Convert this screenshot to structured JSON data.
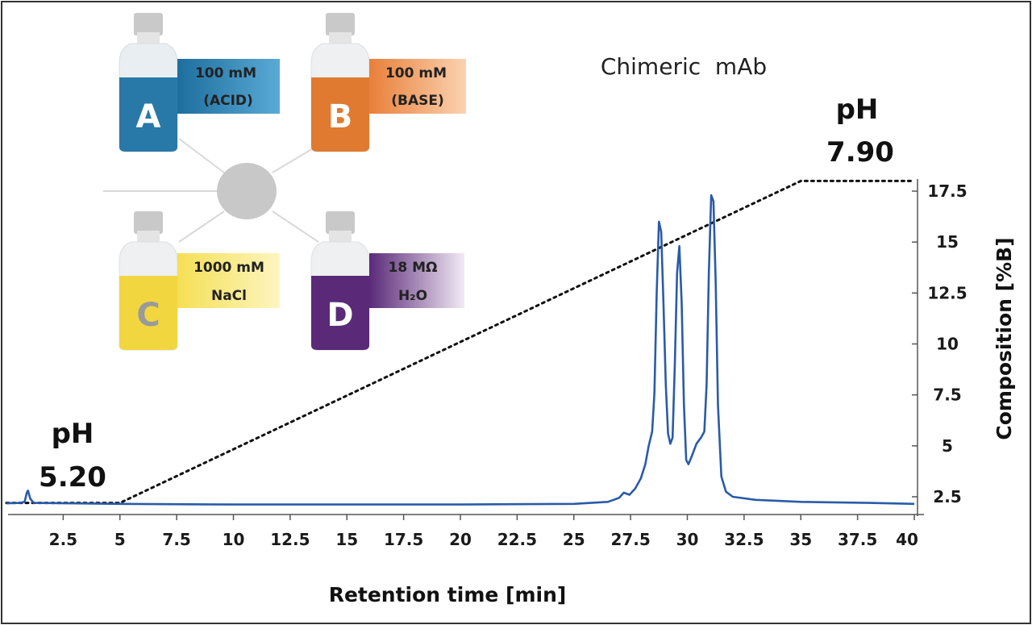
{
  "chart_data": {
    "type": "line",
    "xlabel": "Retention time [min]",
    "ylabel": "Composition [%B]",
    "xlim": [
      0,
      40
    ],
    "ylim": [
      2,
      18.5
    ],
    "x_ticks": [
      "2.5",
      "5",
      "7.5",
      "10",
      "12.5",
      "15",
      "17.5",
      "20",
      "22.5",
      "25",
      "27.5",
      "30",
      "32.5",
      "35",
      "37.5",
      "40"
    ],
    "y_ticks": [
      "2.5",
      "5",
      "7.5",
      "10",
      "12.5",
      "15",
      "17.5"
    ],
    "grid": false,
    "series": [
      {
        "kind": "chromatogram",
        "color": "#2a5ba8",
        "points": [
          [
            0,
            2.18
          ],
          [
            0.6,
            2.2
          ],
          [
            0.8,
            2.25
          ],
          [
            0.9,
            2.7
          ],
          [
            0.95,
            2.8
          ],
          [
            1.05,
            2.4
          ],
          [
            1.2,
            2.2
          ],
          [
            5,
            2.15
          ],
          [
            10,
            2.12
          ],
          [
            15,
            2.12
          ],
          [
            20,
            2.12
          ],
          [
            25,
            2.15
          ],
          [
            26.5,
            2.25
          ],
          [
            27.0,
            2.45
          ],
          [
            27.2,
            2.7
          ],
          [
            27.45,
            2.6
          ],
          [
            27.7,
            2.9
          ],
          [
            27.95,
            3.4
          ],
          [
            28.15,
            4.1
          ],
          [
            28.3,
            5.0
          ],
          [
            28.45,
            5.7
          ],
          [
            28.55,
            7.6
          ],
          [
            28.65,
            12.5
          ],
          [
            28.75,
            16.0
          ],
          [
            28.85,
            15.5
          ],
          [
            28.95,
            12.0
          ],
          [
            29.05,
            8.0
          ],
          [
            29.15,
            5.6
          ],
          [
            29.25,
            5.1
          ],
          [
            29.35,
            5.4
          ],
          [
            29.45,
            9.0
          ],
          [
            29.55,
            13.5
          ],
          [
            29.65,
            14.8
          ],
          [
            29.75,
            12.0
          ],
          [
            29.85,
            7.0
          ],
          [
            29.95,
            4.3
          ],
          [
            30.05,
            4.1
          ],
          [
            30.2,
            4.5
          ],
          [
            30.4,
            5.1
          ],
          [
            30.6,
            5.4
          ],
          [
            30.75,
            5.7
          ],
          [
            30.85,
            8.0
          ],
          [
            30.95,
            13.5
          ],
          [
            31.05,
            17.3
          ],
          [
            31.15,
            17.0
          ],
          [
            31.25,
            13.0
          ],
          [
            31.35,
            7.0
          ],
          [
            31.5,
            3.5
          ],
          [
            31.7,
            2.75
          ],
          [
            32.0,
            2.5
          ],
          [
            33.0,
            2.35
          ],
          [
            35.0,
            2.25
          ],
          [
            38.0,
            2.2
          ],
          [
            40.0,
            2.15
          ]
        ]
      },
      {
        "kind": "gradient",
        "color": "#111111",
        "points": [
          [
            0,
            2.2
          ],
          [
            5,
            2.2
          ],
          [
            35,
            18.0
          ],
          [
            40,
            18.0
          ]
        ]
      }
    ],
    "annotations": {
      "peak_label": "Chimeric  mAb",
      "ph_start_label": "pH",
      "ph_start_value": "5.20",
      "ph_end_label": "pH",
      "ph_end_value": "7.90"
    }
  },
  "inset": {
    "bottles": [
      {
        "letter": "A",
        "line1": "100 mM",
        "line2": "(ACID)",
        "color": "#2878a8",
        "label_color": "#3a8fbf"
      },
      {
        "letter": "B",
        "line1": "100 mM",
        "line2": "(BASE)",
        "color": "#e07a30",
        "label_color": "#ee9a5a"
      },
      {
        "letter": "C",
        "line1": "1000 mM",
        "line2": "NaCl",
        "color": "#f2d640",
        "label_color": "#f7e46a"
      },
      {
        "letter": "D",
        "line1": "18 MΩ",
        "line2": "H₂O",
        "color": "#5a2a78",
        "label_color": "#7a4a98"
      }
    ]
  }
}
